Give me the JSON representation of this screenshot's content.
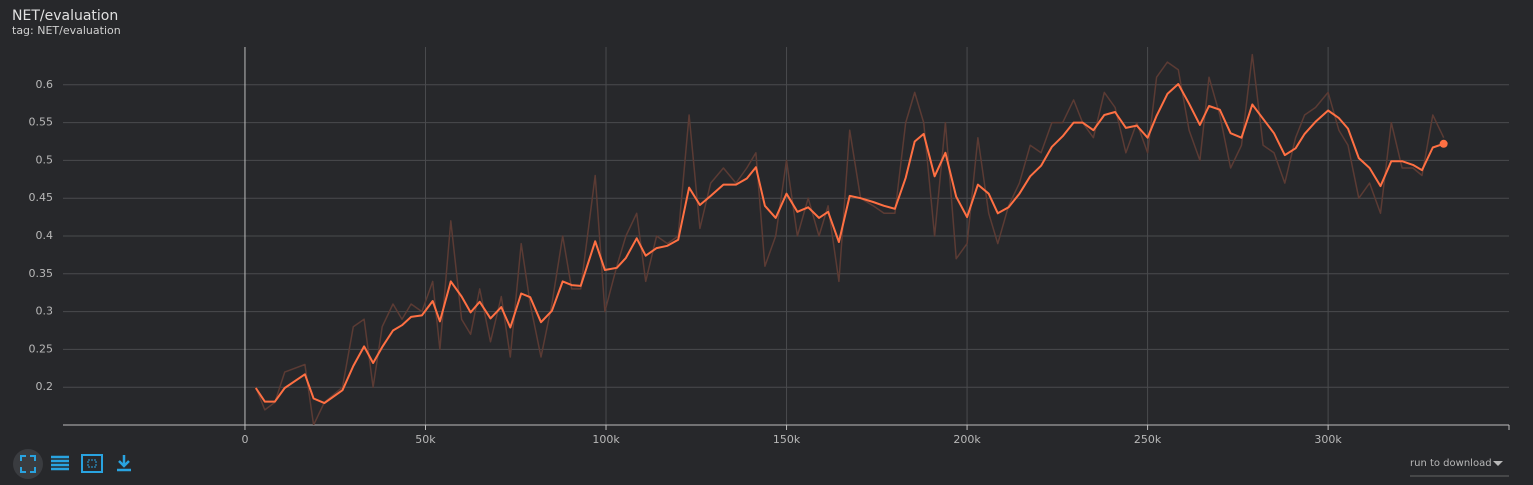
{
  "chart_data": {
    "type": "line",
    "title": "NET/evaluation",
    "subtitle": "tag: NET/evaluation",
    "x": [
      3000,
      5500,
      8300,
      11000,
      16600,
      19000,
      22000,
      27000,
      30000,
      33000,
      35500,
      38000,
      41000,
      43500,
      46000,
      49000,
      52000,
      54000,
      57000,
      60000,
      62500,
      65000,
      68000,
      71000,
      73500,
      76500,
      79000,
      82000,
      85000,
      88000,
      90500,
      93000,
      97000,
      99700,
      103000,
      105500,
      108500,
      111000,
      114000,
      117000,
      120000,
      123000,
      126000,
      129000,
      132500,
      136000,
      139000,
      141500,
      144000,
      147000,
      150000,
      153000,
      156000,
      159000,
      161500,
      164500,
      167500,
      170500,
      174000,
      177000,
      180000,
      183000,
      185500,
      188000,
      191000,
      194000,
      197000,
      200000,
      203000,
      206000,
      208500,
      211500,
      214500,
      217500,
      220500,
      223500,
      226500,
      229500,
      232000,
      235000,
      238000,
      241000,
      244000,
      247000,
      250000,
      252500,
      255500,
      258500,
      261500,
      264500,
      267000,
      270000,
      273000,
      276000,
      279000,
      282000,
      285000,
      288000,
      291000,
      293500,
      296500,
      300000,
      303000,
      305500,
      308500,
      311500,
      314500,
      317500,
      320500,
      323500,
      326000,
      329000,
      332000
    ],
    "series": [
      {
        "color": "#5b3b34",
        "values": [
          0.2,
          0.17,
          0.18,
          0.22,
          0.23,
          0.15,
          0.18,
          0.2,
          0.28,
          0.29,
          0.2,
          0.28,
          0.31,
          0.29,
          0.31,
          0.3,
          0.34,
          0.25,
          0.42,
          0.29,
          0.27,
          0.33,
          0.26,
          0.32,
          0.24,
          0.39,
          0.31,
          0.24,
          0.31,
          0.4,
          0.33,
          0.33,
          0.48,
          0.3,
          0.36,
          0.4,
          0.43,
          0.34,
          0.4,
          0.39,
          0.4,
          0.56,
          0.41,
          0.47,
          0.49,
          0.47,
          0.49,
          0.51,
          0.36,
          0.4,
          0.5,
          0.4,
          0.45,
          0.4,
          0.44,
          0.34,
          0.54,
          0.45,
          0.44,
          0.43,
          0.43,
          0.55,
          0.59,
          0.55,
          0.4,
          0.55,
          0.37,
          0.39,
          0.53,
          0.43,
          0.39,
          0.44,
          0.47,
          0.52,
          0.51,
          0.55,
          0.55,
          0.58,
          0.55,
          0.53,
          0.59,
          0.57,
          0.51,
          0.55,
          0.51,
          0.61,
          0.63,
          0.62,
          0.54,
          0.5,
          0.61,
          0.56,
          0.49,
          0.52,
          0.64,
          0.52,
          0.51,
          0.47,
          0.53,
          0.56,
          0.57,
          0.59,
          0.54,
          0.52,
          0.45,
          0.47,
          0.43,
          0.55,
          0.49,
          0.49,
          0.48,
          0.56,
          0.53
        ]
      },
      {
        "color": "#ff7043",
        "values": [
          0.199,
          0.181,
          0.181,
          0.199,
          0.217,
          0.185,
          0.179,
          0.196,
          0.228,
          0.254,
          0.232,
          0.253,
          0.275,
          0.282,
          0.293,
          0.295,
          0.314,
          0.287,
          0.34,
          0.32,
          0.299,
          0.313,
          0.291,
          0.306,
          0.279,
          0.324,
          0.319,
          0.286,
          0.301,
          0.34,
          0.335,
          0.334,
          0.393,
          0.355,
          0.358,
          0.371,
          0.397,
          0.374,
          0.384,
          0.387,
          0.395,
          0.464,
          0.441,
          0.453,
          0.468,
          0.468,
          0.476,
          0.491,
          0.44,
          0.424,
          0.456,
          0.432,
          0.438,
          0.424,
          0.432,
          0.392,
          0.453,
          0.45,
          0.445,
          0.44,
          0.436,
          0.477,
          0.525,
          0.535,
          0.479,
          0.51,
          0.452,
          0.425,
          0.468,
          0.456,
          0.43,
          0.438,
          0.456,
          0.479,
          0.493,
          0.518,
          0.532,
          0.55,
          0.55,
          0.54,
          0.56,
          0.564,
          0.543,
          0.546,
          0.53,
          0.559,
          0.588,
          0.601,
          0.575,
          0.547,
          0.572,
          0.567,
          0.536,
          0.53,
          0.574,
          0.555,
          0.536,
          0.507,
          0.516,
          0.535,
          0.551,
          0.566,
          0.556,
          0.542,
          0.503,
          0.49,
          0.466,
          0.499,
          0.499,
          0.494,
          0.487,
          0.517,
          0.522
        ]
      }
    ],
    "xlim": [
      -50400,
      350100
    ],
    "ylim": [
      0.15,
      0.65
    ],
    "xticks": [
      0,
      {
        "value": 50000,
        "label": "50k"
      },
      {
        "value": 100000,
        "label": "100k"
      },
      {
        "value": 150000,
        "label": "150k"
      },
      {
        "value": 200000,
        "label": "200k"
      },
      {
        "value": 250000,
        "label": "250k"
      },
      {
        "value": 300000,
        "label": "300k"
      }
    ],
    "yticks": [
      0.2,
      0.25,
      0.3,
      0.35,
      0.4,
      0.45,
      0.5,
      0.55,
      0.6
    ],
    "grid": true
  },
  "controls": {
    "download_label": "run to download"
  }
}
